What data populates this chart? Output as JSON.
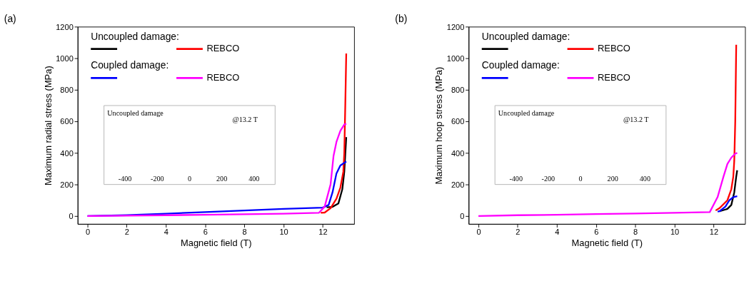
{
  "chart_data": [
    {
      "type": "line",
      "title": "(a)",
      "xlabel": "Magnetic field (T)",
      "ylabel": "Maximum radial stress (MPa)",
      "xlim": [
        -0.5,
        13.6
      ],
      "ylim": [
        -50,
        1200
      ],
      "xticks": [
        0,
        2,
        4,
        6,
        8,
        10,
        12
      ],
      "yticks": [
        0,
        200,
        400,
        600,
        800,
        1000,
        1200
      ],
      "grid": false,
      "legend": "top left",
      "marker": "none",
      "line_style": "solid",
      "annotations": [
        "Uncoupled damage:",
        "Coupled damage:",
        "Uncoupled damage",
        "@13.2 T",
        "-400",
        "-200",
        "0",
        "200",
        "400"
      ],
      "series": [
        {
          "color": "#000000",
          "x": [
            12.2,
            12.5,
            12.8,
            13.0,
            13.1,
            13.2
          ],
          "values": [
            55,
            58,
            80,
            170,
            280,
            500
          ]
        },
        {
          "name": "REBCO",
          "color": "#ff0000",
          "x": [
            11.9,
            12.1,
            12.4,
            12.7,
            12.9,
            13.05,
            13.1,
            13.15,
            13.2
          ],
          "values": [
            21,
            22,
            50,
            110,
            180,
            280,
            400,
            700,
            1030
          ]
        },
        {
          "color": "#0000ff",
          "x": [
            0,
            2,
            4,
            6,
            8,
            10,
            12,
            12.3,
            12.5,
            12.7,
            12.9,
            13.2
          ],
          "values": [
            0,
            5,
            15,
            25,
            35,
            45,
            53,
            70,
            150,
            270,
            320,
            345
          ]
        },
        {
          "name": "REBCO",
          "color": "#ff00ff",
          "x": [
            0,
            2,
            4,
            6,
            8,
            10,
            11.8,
            12.1,
            12.4,
            12.55,
            12.7,
            12.9,
            13.1,
            13.2
          ],
          "values": [
            0,
            2,
            5,
            8,
            11,
            15,
            20,
            60,
            200,
            380,
            470,
            540,
            580,
            585
          ]
        }
      ]
    },
    {
      "type": "line",
      "title": "(b)",
      "xlabel": "Magnetic field (T)",
      "ylabel": "Maximum hoop stress (MPa)",
      "xlim": [
        -0.5,
        13.6
      ],
      "ylim": [
        -50,
        1200
      ],
      "xticks": [
        0,
        2,
        4,
        6,
        8,
        10,
        12
      ],
      "yticks": [
        0,
        200,
        400,
        600,
        800,
        1000,
        1200
      ],
      "grid": false,
      "legend": "top left",
      "marker": "none",
      "line_style": "solid",
      "annotations": [
        "Uncoupled damage:",
        "Coupled damage:",
        "Uncoupled damage",
        "@13.2 T",
        "-400",
        "-200",
        "0",
        "200",
        "400"
      ],
      "series": [
        {
          "color": "#000000",
          "x": [
            12.3,
            12.7,
            12.9,
            13.05,
            13.15,
            13.2
          ],
          "values": [
            30,
            45,
            70,
            150,
            250,
            290
          ]
        },
        {
          "name": "REBCO",
          "color": "#ff0000",
          "x": [
            12.1,
            12.3,
            12.7,
            12.9,
            13.0,
            13.05,
            13.1,
            13.15
          ],
          "values": [
            35,
            50,
            100,
            170,
            250,
            350,
            600,
            1085
          ]
        },
        {
          "color": "#0000ff",
          "x": [
            12.2,
            12.3,
            12.6,
            12.8,
            13.0,
            13.2
          ],
          "values": [
            28,
            30,
            60,
            100,
            120,
            125
          ]
        },
        {
          "name": "REBCO",
          "color": "#ff00ff",
          "x": [
            0,
            2,
            4,
            6,
            8,
            10,
            11.8,
            12.2,
            12.5,
            12.7,
            12.9,
            13.1,
            13.2
          ],
          "values": [
            0,
            5,
            8,
            12,
            16,
            20,
            25,
            120,
            250,
            330,
            370,
            395,
            400
          ]
        }
      ]
    }
  ]
}
